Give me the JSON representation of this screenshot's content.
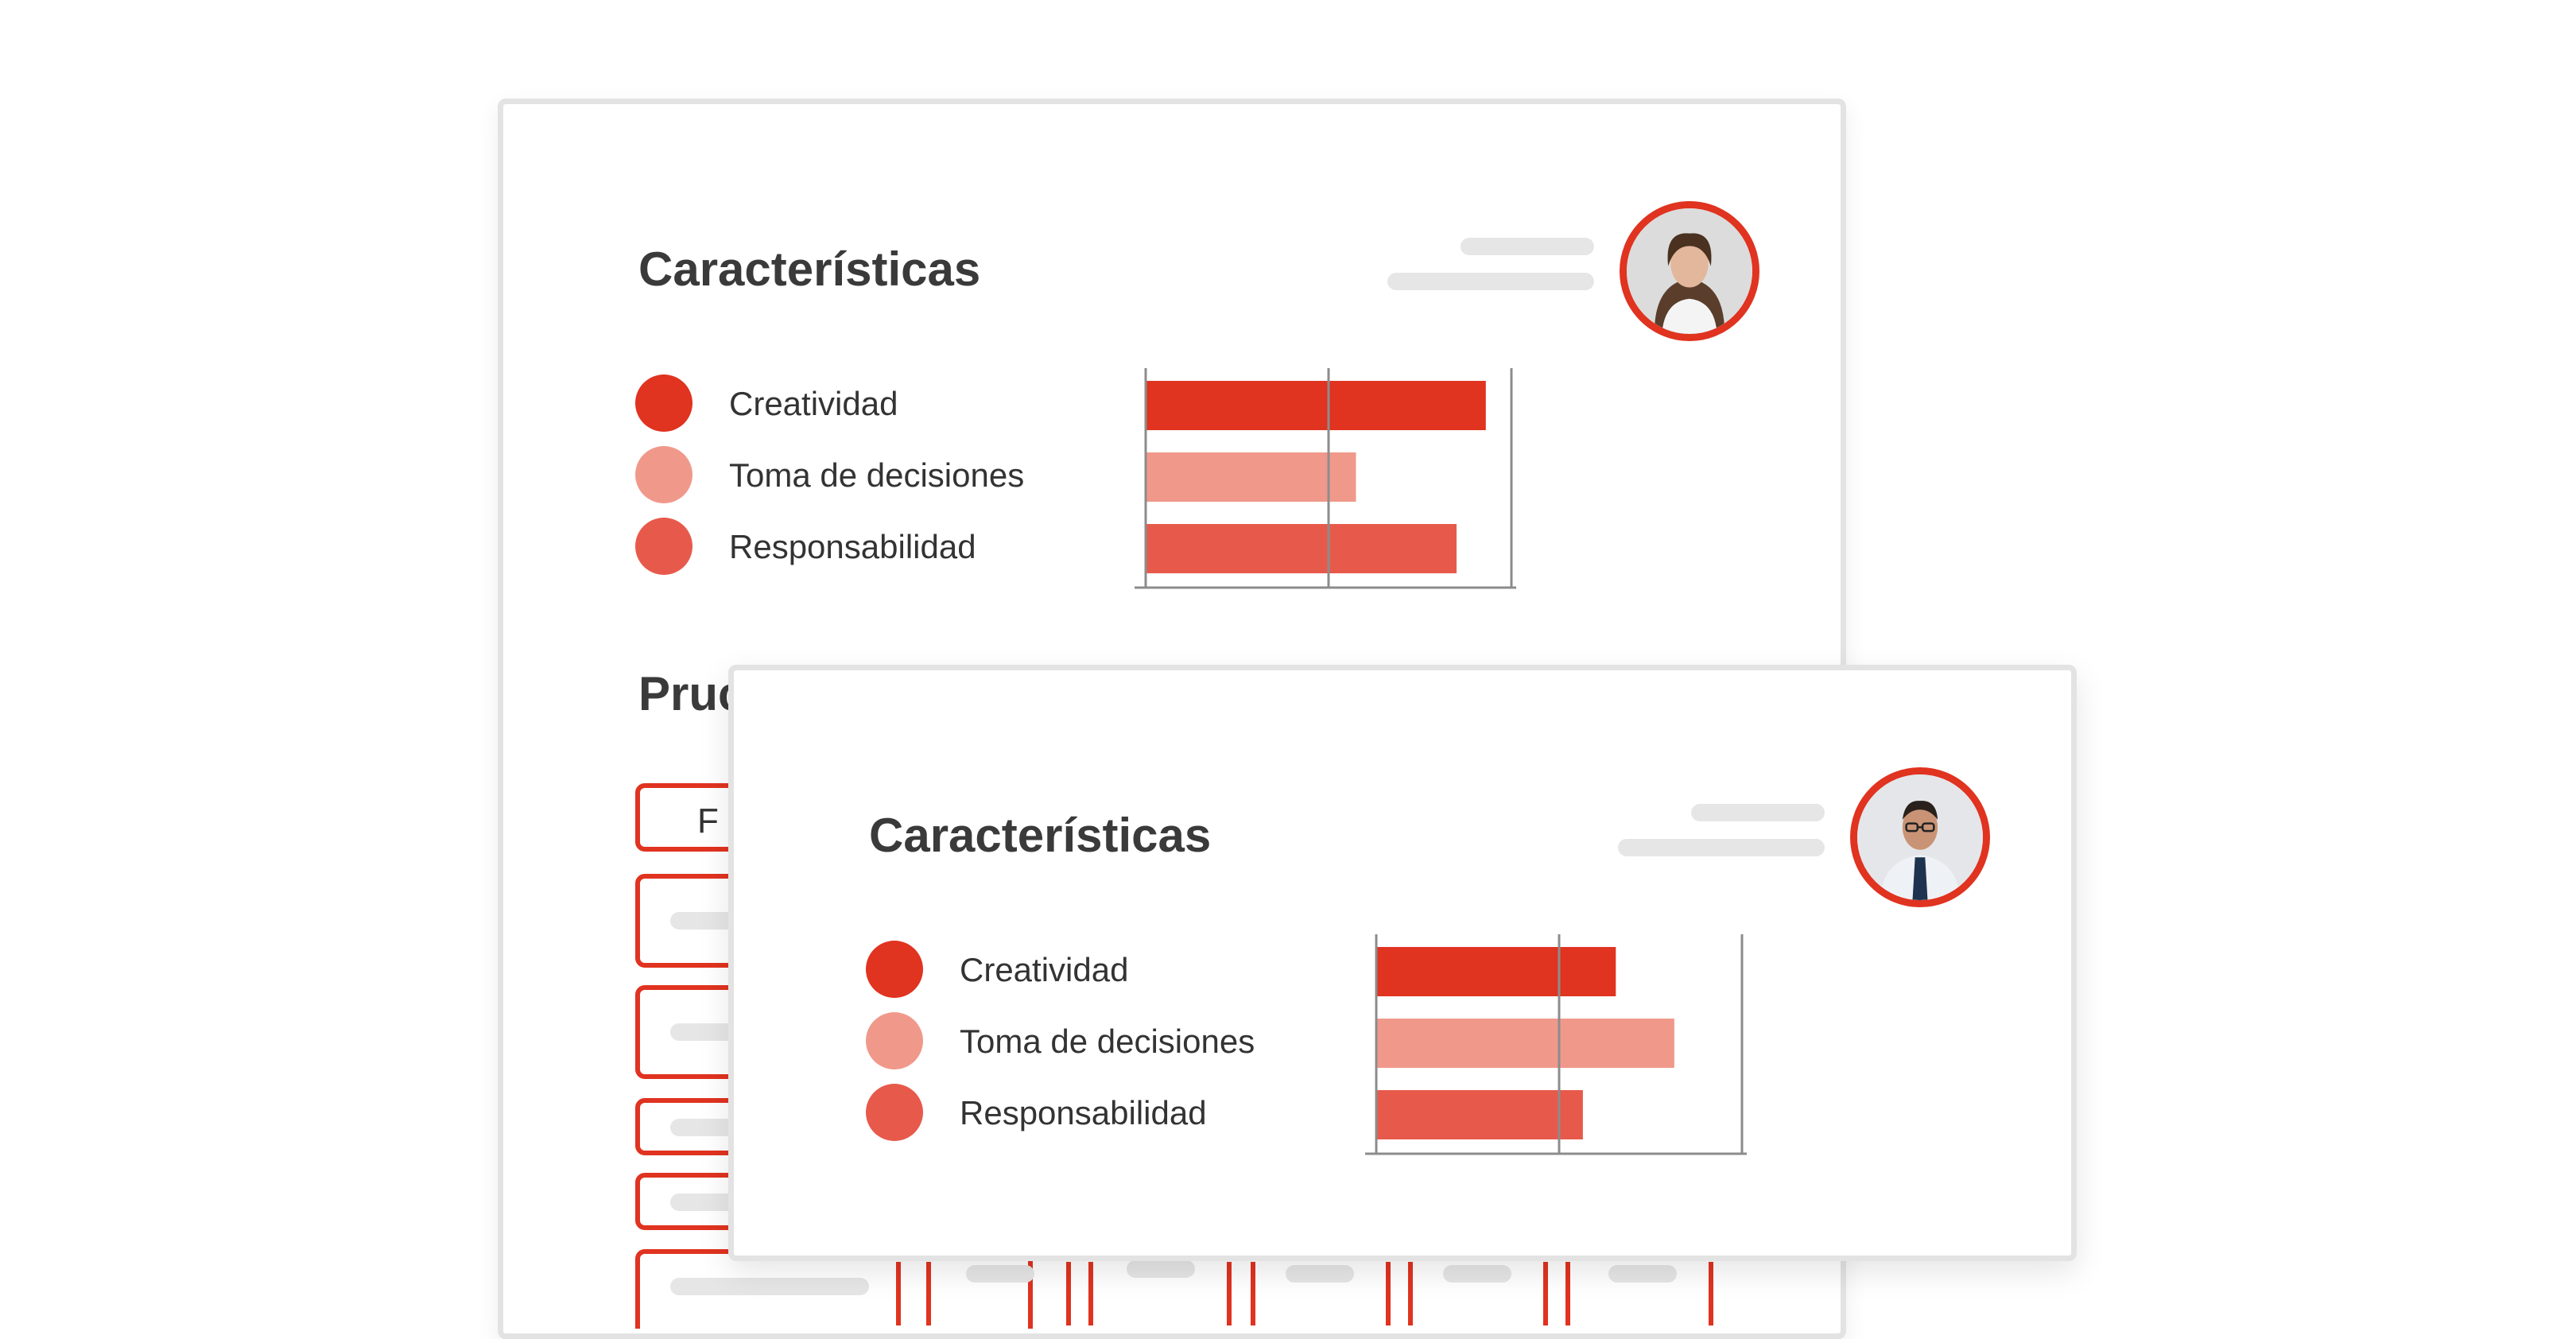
{
  "colors": {
    "accent": "#e03320",
    "light": "#f0998b",
    "medium": "#e75a4b",
    "text": "#3a3a3a",
    "placeholder": "#e6e6e6",
    "border": "#e3e3e3"
  },
  "back_card": {
    "title": "Características",
    "section_title_partial": "Pruc",
    "button_partial": "F",
    "avatar_icon": "woman-portrait",
    "legend": [
      {
        "label": "Creatividad",
        "color": "#e03320"
      },
      {
        "label": "Toma de decisiones",
        "color": "#f0998b"
      },
      {
        "label": "Responsabilidad",
        "color": "#e75a4b"
      }
    ]
  },
  "front_card": {
    "title": "Características",
    "avatar_icon": "man-portrait",
    "legend": [
      {
        "label": "Creatividad",
        "color": "#e03320"
      },
      {
        "label": "Toma de decisiones",
        "color": "#f0998b"
      },
      {
        "label": "Responsabilidad",
        "color": "#e75a4b"
      }
    ]
  },
  "chart_data": [
    {
      "type": "bar",
      "orientation": "horizontal",
      "categories": [
        "Creatividad",
        "Toma de decisiones",
        "Responsabilidad"
      ],
      "values": [
        1.86,
        1.15,
        1.7
      ],
      "xlim": [
        0,
        2
      ],
      "colors": [
        "#e03320",
        "#f0998b",
        "#e75a4b"
      ],
      "grid": true
    },
    {
      "type": "bar",
      "orientation": "horizontal",
      "categories": [
        "Creatividad",
        "Toma de decisiones",
        "Responsabilidad"
      ],
      "values": [
        1.31,
        1.63,
        1.13
      ],
      "xlim": [
        0,
        2
      ],
      "colors": [
        "#e03320",
        "#f0998b",
        "#e75a4b"
      ],
      "grid": true
    }
  ]
}
